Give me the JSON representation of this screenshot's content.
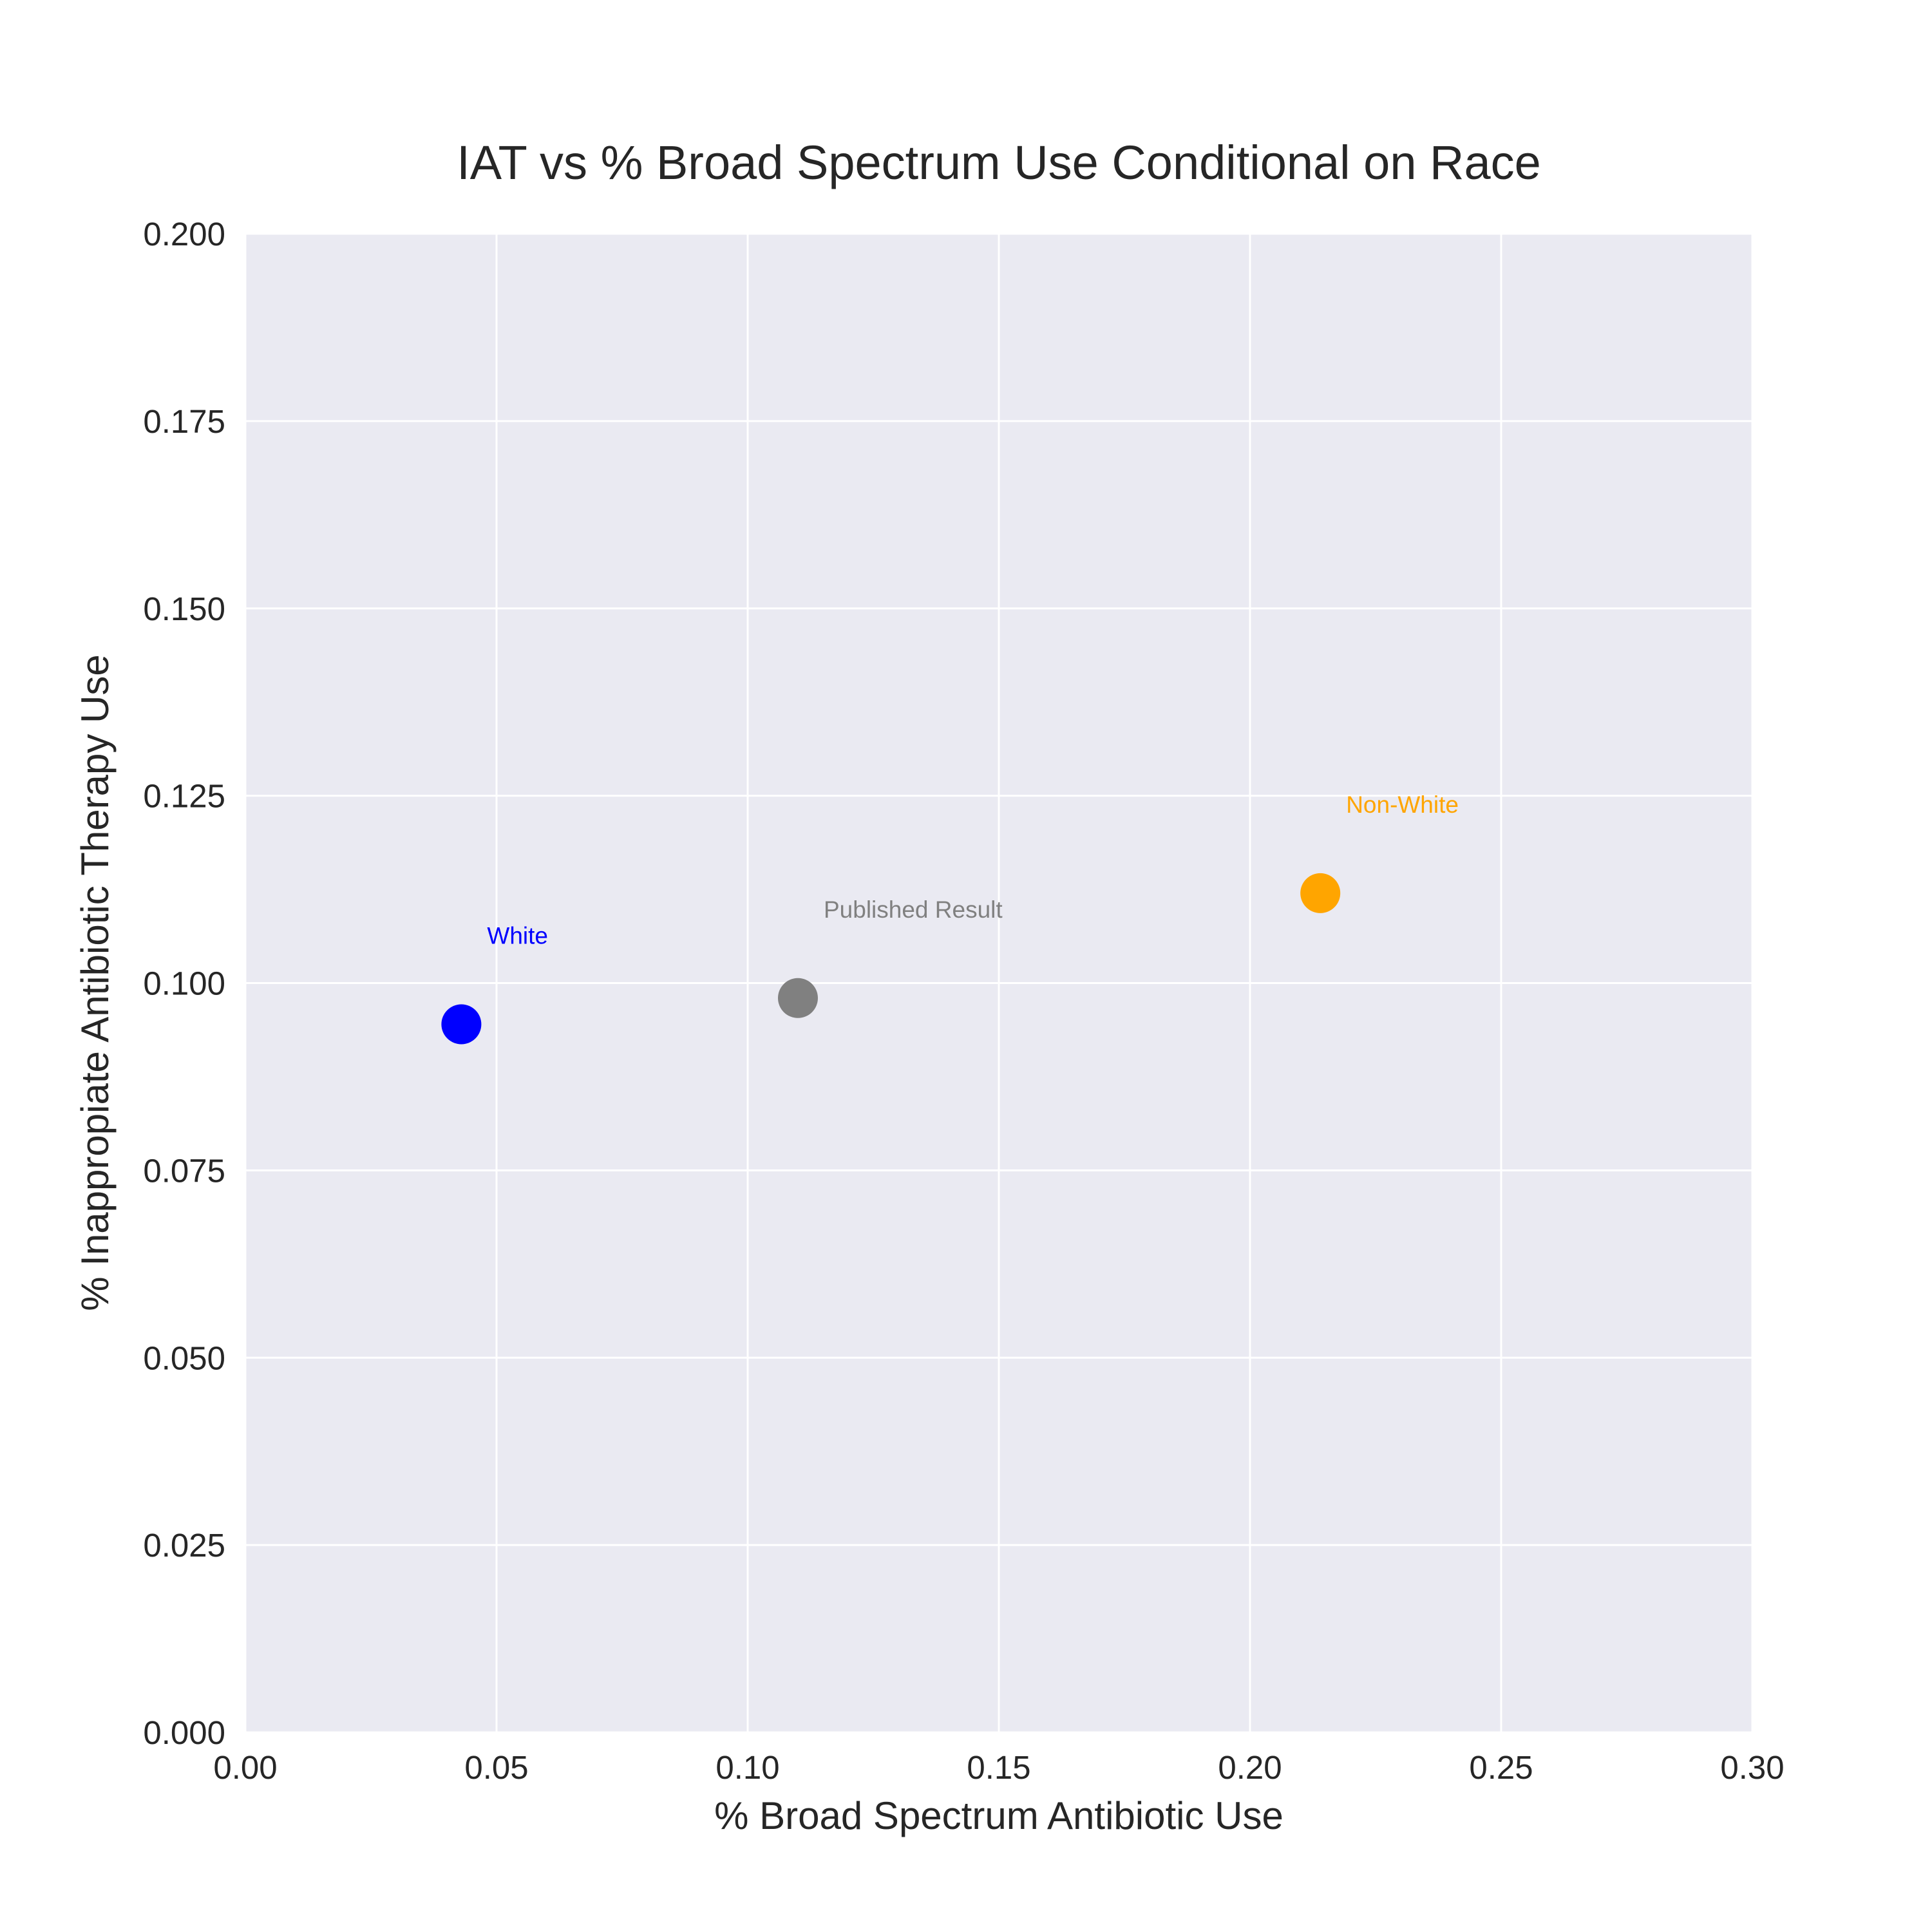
{
  "chart_data": {
    "type": "scatter",
    "title": "IAT vs % Broad Spectrum Use Conditional on Race",
    "xlabel": "% Broad Spectrum Antibiotic Use",
    "ylabel": "% Inappropiate Antibiotic Therapy Use",
    "xlim": [
      0.0,
      0.3
    ],
    "ylim": [
      0.0,
      0.2
    ],
    "xticks": [
      "0.00",
      "0.05",
      "0.10",
      "0.15",
      "0.20",
      "0.25",
      "0.30"
    ],
    "yticks": [
      "0.000",
      "0.025",
      "0.050",
      "0.075",
      "0.100",
      "0.125",
      "0.150",
      "0.175",
      "0.200"
    ],
    "grid": true,
    "background_color": "#eaeaf2",
    "points": [
      {
        "label": "White",
        "x": 0.043,
        "y": 0.0945,
        "color": "#0000ff"
      },
      {
        "label": "Published Result",
        "x": 0.11,
        "y": 0.098,
        "color": "#808080"
      },
      {
        "label": "Non-White",
        "x": 0.214,
        "y": 0.112,
        "color": "#ffa500"
      }
    ]
  }
}
